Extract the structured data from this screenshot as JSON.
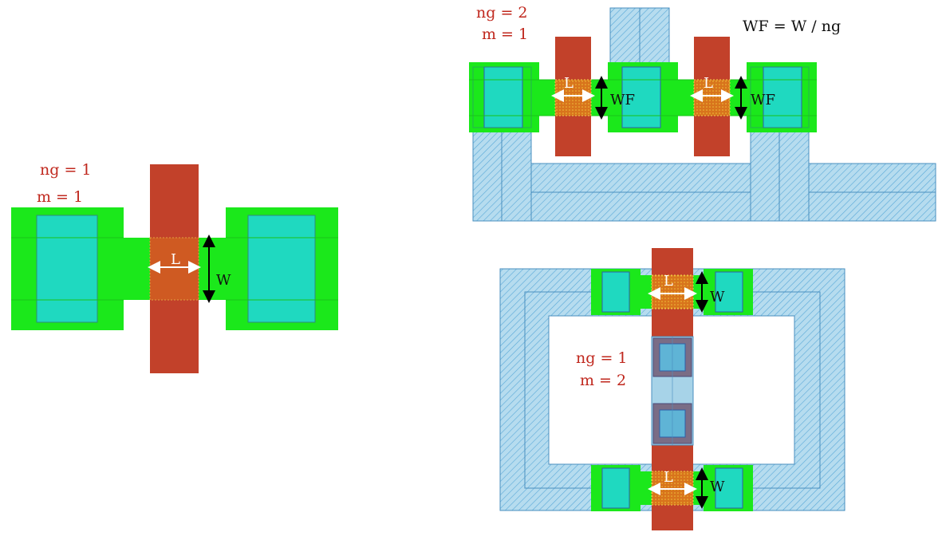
{
  "colors": {
    "diffusion": "#1be81b",
    "diffusion_dark": "#19c819",
    "contact": "#1fd9c0",
    "poly": "#c2412a",
    "metal": "#a7d3e8",
    "metal_hatch": "#5aa9d8",
    "channel": "#d86a1e",
    "label_red": "#c0281e"
  },
  "layout1": {
    "ng_label": "ng = 1",
    "m_label": "m = 1",
    "length_label": "L",
    "width_label": "W"
  },
  "layout2": {
    "ng_label": "ng = 2",
    "m_label": "m = 1",
    "formula": "WF = W / ng",
    "length_label_left": "L",
    "length_label_right": "L",
    "width_label_left": "WF",
    "width_label_right": "WF"
  },
  "layout3": {
    "ng_label": "ng = 1",
    "m_label": "m = 2",
    "length_label_top": "L",
    "length_label_bottom": "L",
    "width_label_top": "W",
    "width_label_bottom": "W"
  }
}
